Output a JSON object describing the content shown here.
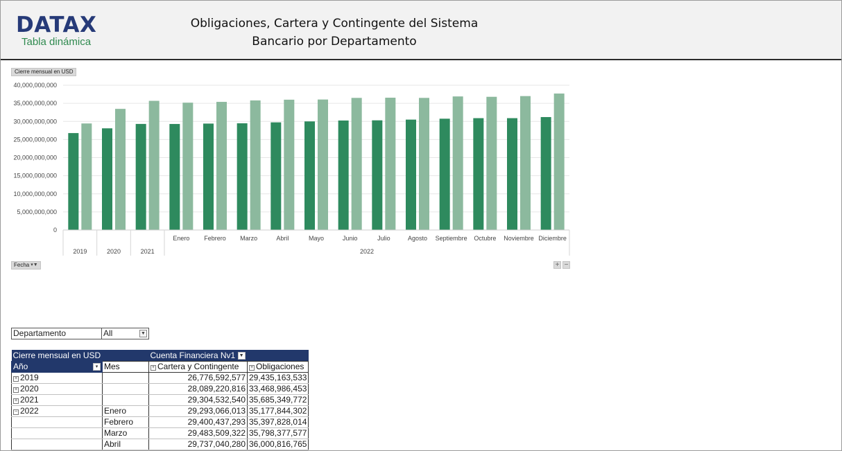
{
  "header": {
    "logo_main": "DATAX",
    "logo_sub": "Tabla dinámica",
    "title_line1": "Obligaciones, Cartera y Contingente del Sistema",
    "title_line2": "Bancario por Departamento"
  },
  "chart_controls": {
    "measure_button": "Cierre mensual en USD",
    "field_button": "Fecha",
    "field_button_icon": "filter-dropdown-icon",
    "expand_icon": "+",
    "collapse_icon": "−"
  },
  "chart_data": {
    "type": "bar",
    "categories": [
      "2019",
      "2020",
      "2021",
      "Enero",
      "Febrero",
      "Marzo",
      "Abril",
      "Mayo",
      "Junio",
      "Julio",
      "Agosto",
      "Septiembre",
      "Octubre",
      "Noviembre",
      "Diciembre"
    ],
    "category_groups": [
      {
        "label": "2019",
        "span": 1
      },
      {
        "label": "2020",
        "span": 1
      },
      {
        "label": "2021",
        "span": 1
      },
      {
        "label": "2022",
        "span": 12
      }
    ],
    "series": [
      {
        "name": "Cartera y Contingente",
        "color": "#2e8a5e",
        "values": [
          26776592577,
          28089220816,
          29304532540,
          29293066013,
          29400437293,
          29483509322,
          29737040280,
          30000000000,
          30250000000,
          30300000000,
          30500000000,
          30750000000,
          30900000000,
          30900000000,
          31200000000
        ]
      },
      {
        "name": "Obligaciones",
        "color": "#8cb99e",
        "values": [
          29435163533,
          33468986453,
          35685349772,
          35177844302,
          35397828014,
          35798377577,
          36000816765,
          36050000000,
          36500000000,
          36550000000,
          36500000000,
          36900000000,
          36800000000,
          37000000000,
          37700000000
        ]
      }
    ],
    "yticks": [
      "0",
      "5,000,000,000",
      "10,000,000,000",
      "15,000,000,000",
      "20,000,000,000",
      "25,000,000,000",
      "30,000,000,000",
      "35,000,000,000",
      "40,000,000,000"
    ],
    "ylim": [
      0,
      40000000000
    ],
    "legend": "none",
    "grid": true
  },
  "filter": {
    "label": "Departamento",
    "value": "All"
  },
  "pivot": {
    "header_measure": "Cierre mensual en USD",
    "header_column_field": "Cuenta Financiera Nv1",
    "row_field_year": "Año",
    "row_field_month": "Mes",
    "col_cartera": "Cartera y Contingente",
    "col_obligaciones": "Obligaciones",
    "rows": [
      {
        "expander": "+",
        "year": "2019",
        "month": "",
        "cartera": "26,776,592,577",
        "obligaciones": "29,435,163,533"
      },
      {
        "expander": "+",
        "year": "2020",
        "month": "",
        "cartera": "28,089,220,816",
        "obligaciones": "33,468,986,453"
      },
      {
        "expander": "+",
        "year": "2021",
        "month": "",
        "cartera": "29,304,532,540",
        "obligaciones": "35,685,349,772"
      },
      {
        "expander": "−",
        "year": "2022",
        "month": "Enero",
        "cartera": "29,293,066,013",
        "obligaciones": "35,177,844,302"
      },
      {
        "expander": "",
        "year": "",
        "month": "Febrero",
        "cartera": "29,400,437,293",
        "obligaciones": "35,397,828,014"
      },
      {
        "expander": "",
        "year": "",
        "month": "Marzo",
        "cartera": "29,483,509,322",
        "obligaciones": "35,798,377,577"
      },
      {
        "expander": "",
        "year": "",
        "month": "Abril",
        "cartera": "29,737,040,280",
        "obligaciones": "36,000,816,765"
      }
    ]
  }
}
